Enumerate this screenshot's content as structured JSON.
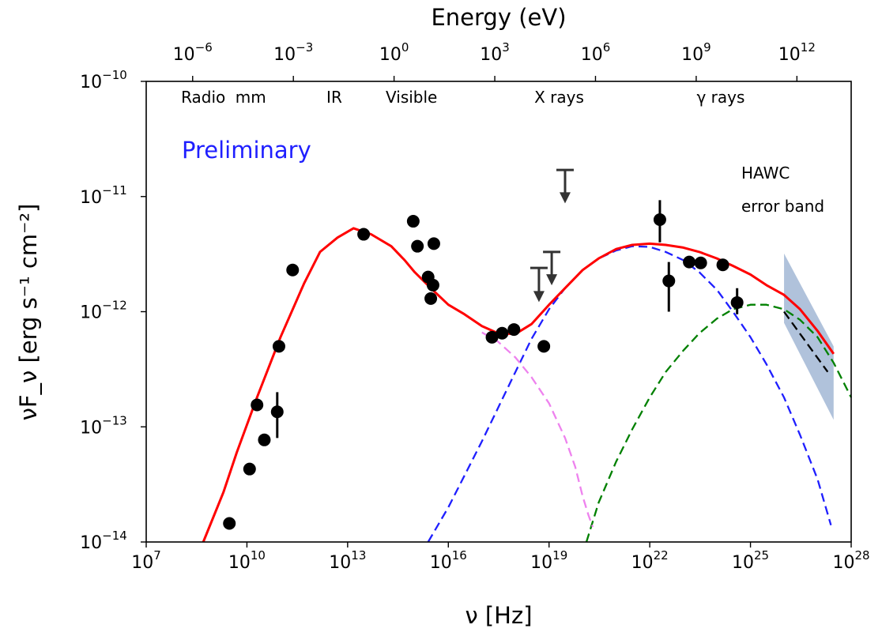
{
  "chart_data": {
    "type": "scatter",
    "title": "",
    "watermark": "Preliminary",
    "watermark_color": "#1f1fff",
    "xlabel": "ν [Hz]",
    "ylabel": "νF_ν [erg s⁻¹ cm⁻²]",
    "top_xlabel": "Energy (eV)",
    "xscale": "log",
    "yscale": "log",
    "xlim": [
      10000000.0,
      1e+28
    ],
    "ylim": [
      1e-14,
      1e-10
    ],
    "x_ticks": [
      "10^7",
      "10^10",
      "10^13",
      "10^16",
      "10^19",
      "10^22",
      "10^25",
      "10^28"
    ],
    "y_ticks": [
      "10^-14",
      "10^-13",
      "10^-12",
      "10^-11",
      "10^-10"
    ],
    "top_ticks": [
      "10^-6",
      "10^-3",
      "10^0",
      "10^3",
      "10^6",
      "10^9",
      "10^12"
    ],
    "bands": [
      {
        "label": "Radio",
        "x": 500000000.0
      },
      {
        "label": "mm",
        "x": 13000000000.0
      },
      {
        "label": "IR",
        "x": 4000000000000.0
      },
      {
        "label": "Visible",
        "x": 800000000000000.0
      },
      {
        "label": "X rays",
        "x": 2e+19
      },
      {
        "label": "γ rays",
        "x": 1.3e+24
      }
    ],
    "annotation": "HAWC\nerror band",
    "points": [
      {
        "x": 3000000000.0,
        "y": 1.45e-14
      },
      {
        "x": 12000000000.0,
        "y": 4.3e-14
      },
      {
        "x": 20000000000.0,
        "y": 1.55e-13
      },
      {
        "x": 33000000000.0,
        "y": 7.7e-14
      },
      {
        "x": 80000000000.0,
        "y": 1.35e-13,
        "ylo": 8e-14,
        "yhi": 2e-13
      },
      {
        "x": 90000000000.0,
        "y": 5e-13
      },
      {
        "x": 230000000000.0,
        "y": 2.3e-12
      },
      {
        "x": 30000000000000.0,
        "y": 4.7e-12
      },
      {
        "x": 900000000000000.0,
        "y": 6.1e-12
      },
      {
        "x": 1200000000000000.0,
        "y": 3.7e-12
      },
      {
        "x": 2500000000000000.0,
        "y": 2e-12
      },
      {
        "x": 3500000000000000.0,
        "y": 1.7e-12
      },
      {
        "x": 3000000000000000.0,
        "y": 1.3e-12
      },
      {
        "x": 3700000000000000.0,
        "y": 3.9e-12
      },
      {
        "x": 2e+17,
        "y": 6e-13
      },
      {
        "x": 4e+17,
        "y": 6.5e-13
      },
      {
        "x": 9e+17,
        "y": 7e-13
      },
      {
        "x": 7e+18,
        "y": 5e-13
      },
      {
        "x": 2e+22,
        "y": 6.3e-12,
        "ylo": 4e-12,
        "yhi": 9.3e-12
      },
      {
        "x": 3.7e+22,
        "y": 1.85e-12,
        "ylo": 1e-12,
        "yhi": 2.7e-12
      },
      {
        "x": 1.5e+23,
        "y": 2.7e-12
      },
      {
        "x": 3.3e+23,
        "y": 2.65e-12
      },
      {
        "x": 1.5e+24,
        "y": 2.55e-12
      },
      {
        "x": 4e+24,
        "y": 1.2e-12,
        "ylo": 9.5e-13,
        "yhi": 1.6e-12
      }
    ],
    "upper_limits": [
      {
        "x": 3e+19,
        "y": 1.7e-11,
        "y_arrow_tip": 9e-12
      },
      {
        "x": 1.2e+19,
        "y": 3.3e-12,
        "y_arrow_tip": 1.75e-12
      },
      {
        "x": 5e+18,
        "y": 2.4e-12,
        "y_arrow_tip": 1.25e-12
      }
    ],
    "series": [
      {
        "color": "#ff0000",
        "style": "solid",
        "width": 3,
        "x": [
          500000000.0,
          2000000000.0,
          5000000000.0,
          20000000000.0,
          100000000000.0,
          500000000000.0,
          1500000000000.0,
          5000000000000.0,
          15000000000000.0,
          50000000000000.0,
          200000000000000.0,
          500000000000000.0,
          1000000000000000.0,
          3000000000000000.0,
          1e+16,
          3e+16,
          1e+17,
          3e+17,
          1e+18,
          3e+18,
          1e+19,
          3e+19,
          1e+20,
          3e+20,
          1e+21,
          3e+21,
          1e+22,
          3e+22,
          1e+23,
          3e+23,
          1e+24,
          3e+24,
          1e+25,
          3e+25,
          1e+26,
          3e+26,
          1e+27,
          3e+27
        ],
        "y": [
          1e-14,
          2.7e-14,
          6e-14,
          1.8e-13,
          6e-13,
          1.75e-12,
          3.3e-12,
          4.4e-12,
          5.3e-12,
          4.7e-12,
          3.7e-12,
          2.8e-12,
          2.2e-12,
          1.6e-12,
          1.15e-12,
          9.5e-13,
          7.5e-13,
          6.5e-13,
          6.4e-13,
          7.8e-13,
          1.15e-12,
          1.6e-12,
          2.3e-12,
          2.9e-12,
          3.5e-12,
          3.8e-12,
          3.9e-12,
          3.8e-12,
          3.6e-12,
          3.3e-12,
          2.9e-12,
          2.5e-12,
          2.1e-12,
          1.7e-12,
          1.4e-12,
          1.05e-12,
          6.8e-13,
          4.3e-13
        ]
      },
      {
        "color": "#ee82ee",
        "style": "dashed",
        "width": 2.3,
        "x": [
          1e+17,
          3e+17,
          1e+18,
          3e+18,
          1e+19,
          3e+19,
          6e+19,
          1e+20,
          1.5e+20,
          2e+20
        ],
        "y": [
          6.6e-13,
          5.5e-13,
          4e-13,
          2.7e-13,
          1.6e-13,
          8e-14,
          4.5e-14,
          2.5e-14,
          1.7e-14,
          1.35e-14
        ]
      },
      {
        "color": "#1f1fff",
        "style": "dashed",
        "width": 2.3,
        "x": [
          2500000000000000.0,
          1e+16,
          1e+17,
          1e+18,
          3e+18,
          1e+19,
          3e+19,
          1e+20,
          3e+20,
          1e+21,
          3e+21,
          1e+22,
          3e+22,
          1e+23,
          3e+23,
          1e+24,
          3e+24,
          1e+25,
          3e+25,
          1e+26,
          3e+26,
          1e+27,
          2.5e+27
        ],
        "y": [
          1e-14,
          2e-14,
          7.5e-14,
          3e-13,
          5.8e-13,
          1.05e-12,
          1.6e-12,
          2.3e-12,
          2.9e-12,
          3.4e-12,
          3.7e-12,
          3.65e-12,
          3.3e-12,
          2.8e-12,
          2.2e-12,
          1.55e-12,
          1e-12,
          6e-13,
          3.5e-13,
          1.8e-13,
          8.5e-14,
          3.5e-14,
          1.4e-14
        ]
      },
      {
        "color": "#008000",
        "style": "dashed",
        "width": 2.3,
        "x": [
          1.3e+20,
          3e+20,
          1e+21,
          3e+21,
          1e+22,
          3e+22,
          1e+23,
          3e+23,
          1e+24,
          3e+24,
          1e+25,
          3e+25,
          1e+26,
          3e+26,
          1e+27,
          3e+27,
          1e+28
        ],
        "y": [
          1e-14,
          2.2e-14,
          5e-14,
          9.5e-14,
          1.8e-13,
          3e-13,
          4.6e-13,
          6.5e-13,
          8.7e-13,
          1.05e-12,
          1.15e-12,
          1.15e-12,
          1.05e-12,
          8.5e-13,
          6e-13,
          3.6e-13,
          1.8e-13
        ]
      },
      {
        "color": "#000000",
        "style": "dashed",
        "width": 2.3,
        "x": [
          1e+26,
          2e+27
        ],
        "y": [
          1e-12,
          3e-13
        ]
      }
    ],
    "error_band": {
      "color": "#6f8fbd",
      "x": [
        1e+26,
        3e+27,
        3e+27,
        1e+26
      ],
      "y": [
        3.2e-12,
        5e-13,
        1.15e-13,
        8e-13
      ]
    }
  }
}
